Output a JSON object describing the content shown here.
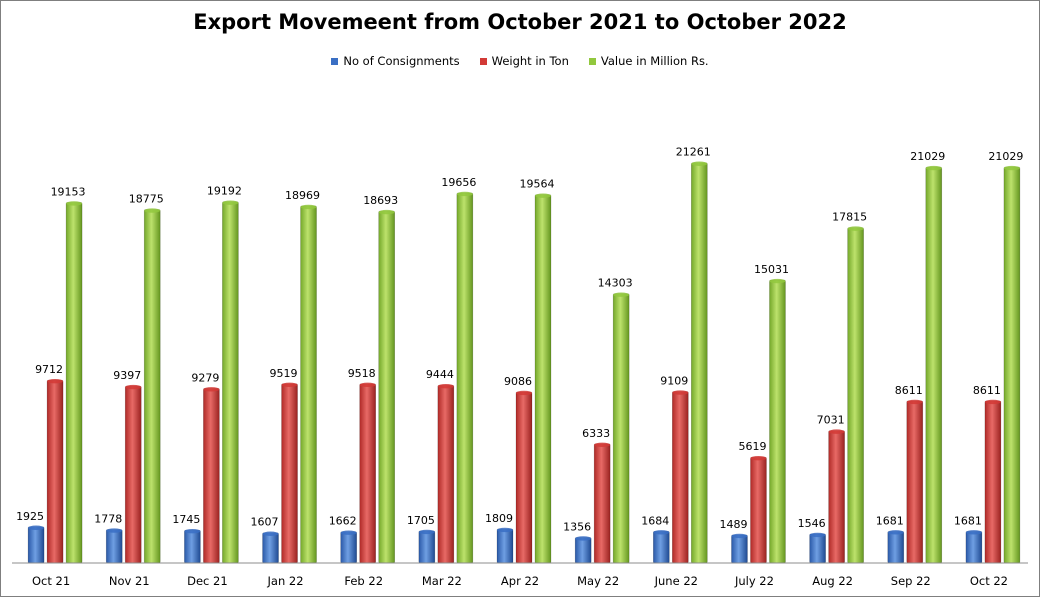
{
  "chart_data": {
    "type": "bar",
    "title": "Export Movemeent from October 2021 to October 2022",
    "categories": [
      "Oct 21",
      "Nov 21",
      "Dec 21",
      "Jan 22",
      "Feb 22",
      "Mar 22",
      "Apr 22",
      "May 22",
      "June 22",
      "July 22",
      "Aug 22",
      "Sep 22",
      "Oct 22"
    ],
    "series": [
      {
        "name": "No of Consignments",
        "color": "#3a6fc4",
        "values": [
          1925,
          1778,
          1745,
          1607,
          1662,
          1705,
          1809,
          1356,
          1684,
          1489,
          1546,
          1681,
          1681
        ]
      },
      {
        "name": "Weight in Ton",
        "color": "#d23a36",
        "values": [
          9712,
          9397,
          9279,
          9519,
          9518,
          9444,
          9086,
          6333,
          9109,
          5619,
          7031,
          8611,
          8611
        ]
      },
      {
        "name": "Value in Million Rs.",
        "color": "#92c83e",
        "values": [
          19153,
          18775,
          19192,
          18969,
          18693,
          19656,
          19564,
          14303,
          21261,
          15031,
          17815,
          21029,
          21029
        ]
      }
    ],
    "xlabel": "",
    "ylabel": "",
    "ylim": [
      0,
      23000
    ],
    "grid": false,
    "legend_position": "top-center"
  }
}
